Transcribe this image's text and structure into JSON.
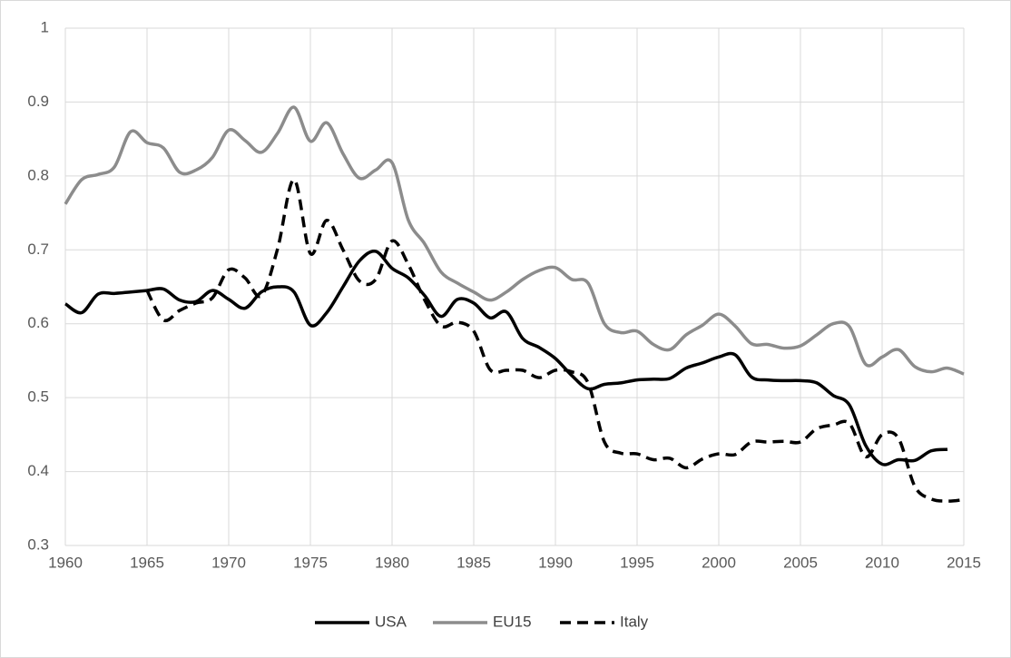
{
  "chart_data": {
    "type": "line",
    "x": [
      1960,
      1961,
      1962,
      1963,
      1964,
      1965,
      1966,
      1967,
      1968,
      1969,
      1970,
      1971,
      1972,
      1973,
      1974,
      1975,
      1976,
      1977,
      1978,
      1979,
      1980,
      1981,
      1982,
      1983,
      1984,
      1985,
      1986,
      1987,
      1988,
      1989,
      1990,
      1991,
      1992,
      1993,
      1994,
      1995,
      1996,
      1997,
      1998,
      1999,
      2000,
      2001,
      2002,
      2003,
      2004,
      2005,
      2006,
      2007,
      2008,
      2009,
      2010,
      2011,
      2012,
      2013,
      2014,
      2015
    ],
    "series": [
      {
        "name": "USA",
        "color": "#000000",
        "style": "solid",
        "values": [
          0.627,
          0.615,
          0.64,
          0.641,
          0.643,
          0.645,
          0.647,
          0.632,
          0.63,
          0.645,
          0.633,
          0.621,
          0.643,
          0.65,
          0.643,
          0.598,
          0.615,
          0.65,
          0.685,
          0.698,
          0.675,
          0.662,
          0.638,
          0.61,
          0.633,
          0.628,
          0.608,
          0.616,
          0.58,
          0.568,
          0.553,
          0.53,
          0.512,
          0.518,
          0.52,
          0.524,
          0.525,
          0.526,
          0.54,
          0.547,
          0.555,
          0.558,
          0.528,
          0.524,
          0.523,
          0.523,
          0.52,
          0.503,
          0.49,
          0.435,
          0.41,
          0.416,
          0.415,
          0.428,
          0.43,
          null
        ]
      },
      {
        "name": "EU15",
        "color": "#8c8c8c",
        "style": "solid",
        "values": [
          0.762,
          0.795,
          0.802,
          0.812,
          0.86,
          0.845,
          0.838,
          0.805,
          0.808,
          0.825,
          0.862,
          0.848,
          0.832,
          0.858,
          0.893,
          0.847,
          0.872,
          0.83,
          0.797,
          0.808,
          0.818,
          0.74,
          0.708,
          0.67,
          0.655,
          0.643,
          0.632,
          0.643,
          0.66,
          0.672,
          0.676,
          0.66,
          0.655,
          0.6,
          0.588,
          0.59,
          0.572,
          0.565,
          0.585,
          0.598,
          0.613,
          0.597,
          0.573,
          0.572,
          0.567,
          0.57,
          0.585,
          0.6,
          0.596,
          0.545,
          0.555,
          0.565,
          0.542,
          0.535,
          0.54,
          0.532
        ]
      },
      {
        "name": "Italy",
        "color": "#000000",
        "style": "dashed",
        "values": [
          null,
          null,
          null,
          null,
          null,
          0.645,
          0.605,
          0.618,
          0.628,
          0.635,
          0.673,
          0.662,
          0.638,
          0.702,
          0.795,
          0.695,
          0.74,
          0.7,
          0.658,
          0.66,
          0.712,
          0.68,
          0.632,
          0.597,
          0.602,
          0.59,
          0.538,
          0.537,
          0.537,
          0.527,
          0.537,
          0.535,
          0.52,
          0.44,
          0.425,
          0.424,
          0.416,
          0.418,
          0.405,
          0.417,
          0.424,
          0.423,
          0.44,
          0.44,
          0.441,
          0.44,
          0.458,
          0.463,
          0.465,
          0.42,
          0.45,
          0.445,
          0.38,
          0.363,
          0.36,
          0.362
        ]
      }
    ],
    "xlim": [
      1960,
      2015
    ],
    "xticks": [
      1960,
      1965,
      1970,
      1975,
      1980,
      1985,
      1990,
      1995,
      2000,
      2005,
      2010,
      2015
    ],
    "ylim": [
      0.3,
      1
    ],
    "yticks": [
      0.3,
      0.4,
      0.5,
      0.6,
      0.7,
      0.8,
      0.9,
      1
    ],
    "grid": true,
    "legend": "bottom"
  }
}
